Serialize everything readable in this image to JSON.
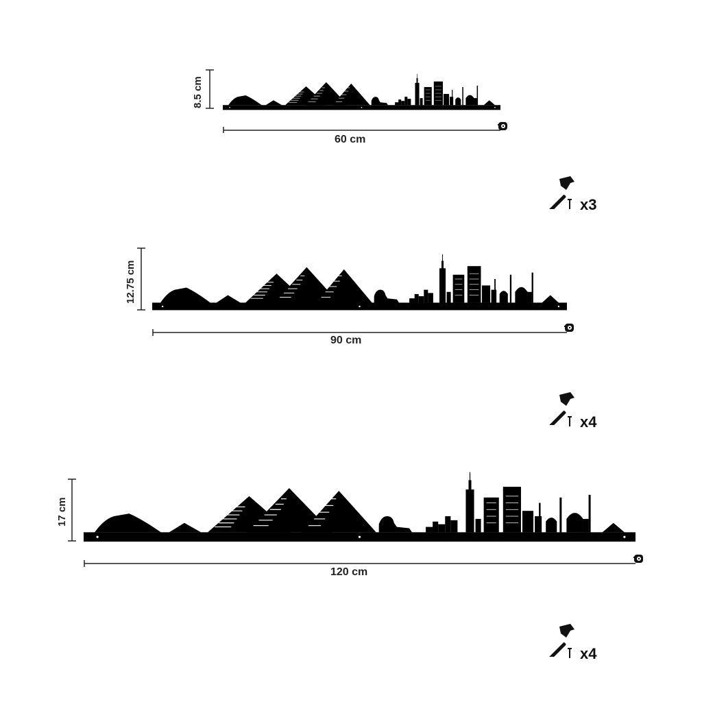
{
  "variants": [
    {
      "height_label": "8.5 cm",
      "width_label": "60 cm",
      "nail_count": "x3"
    },
    {
      "height_label": "12.75 cm",
      "width_label": "90 cm",
      "nail_count": "x4"
    },
    {
      "height_label": "17 cm",
      "width_label": "120 cm",
      "nail_count": "x4"
    }
  ],
  "icons": {
    "measure": "tape-measure-icon",
    "hammer": "hammer-icon",
    "nail": "nail-icon"
  },
  "colors": {
    "silhouette": "#000000",
    "background": "#ffffff"
  }
}
